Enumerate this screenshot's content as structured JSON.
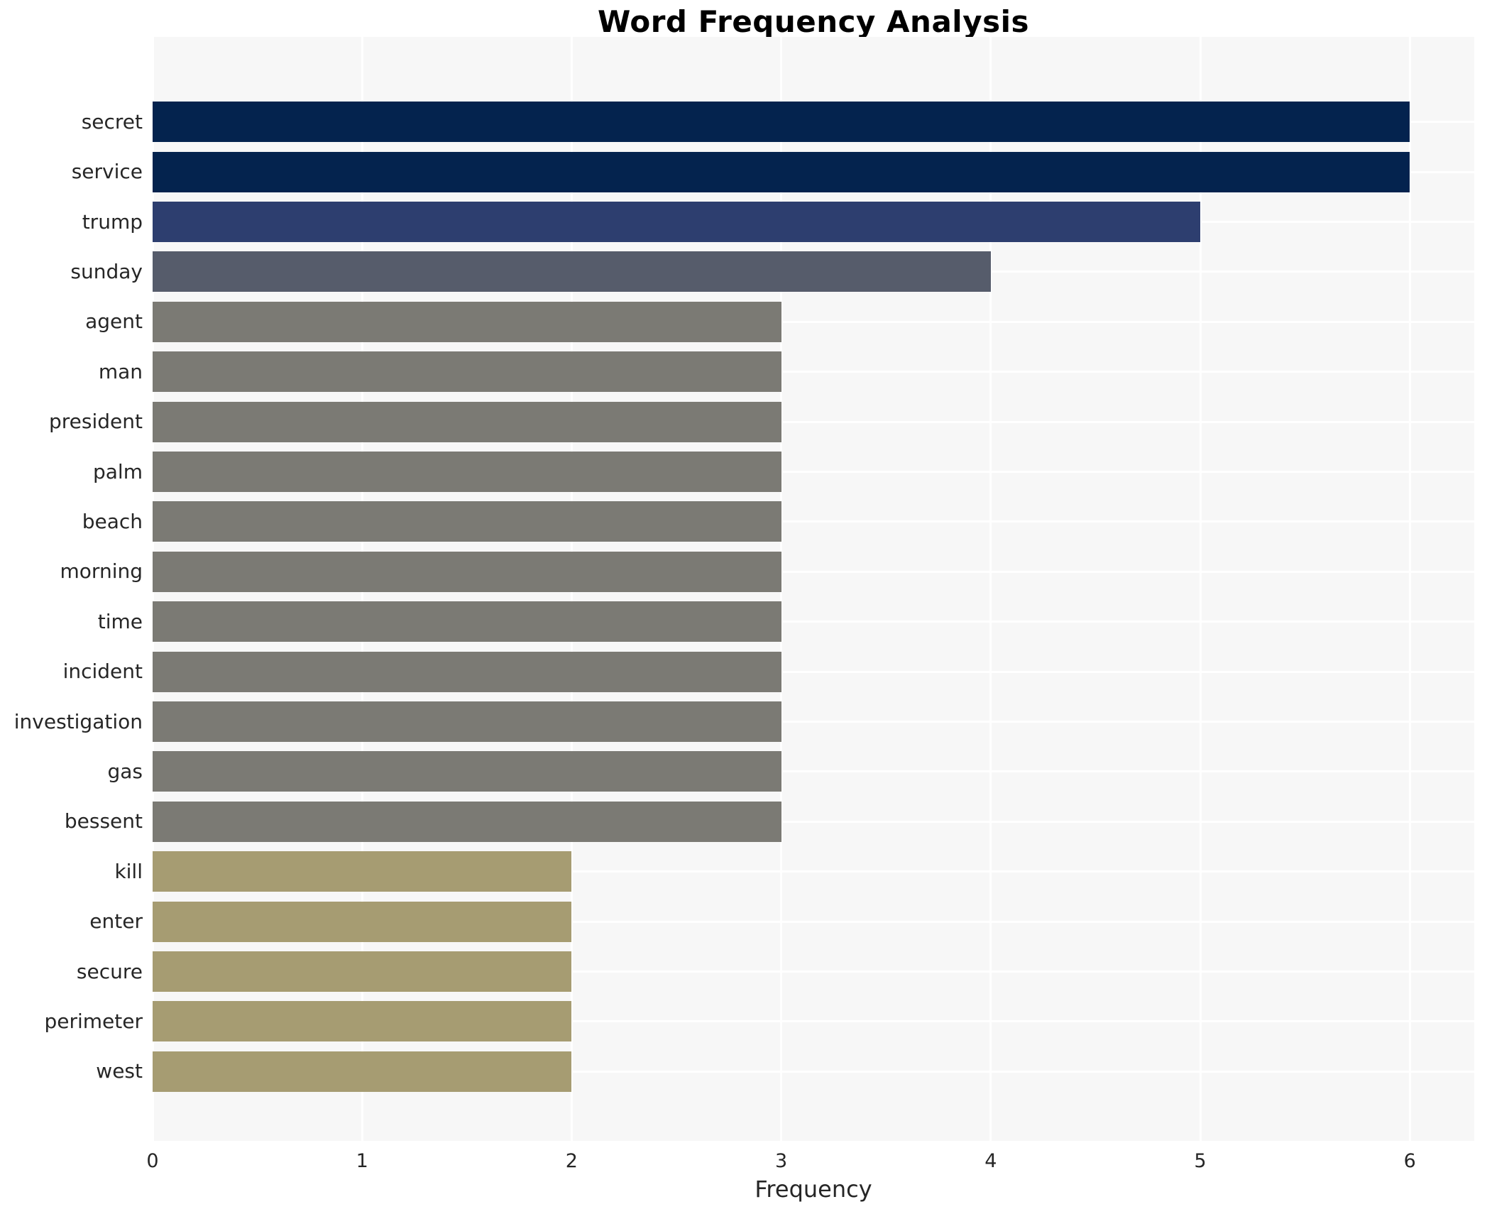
{
  "chart_data": {
    "type": "bar",
    "orientation": "horizontal",
    "title": "Word Frequency Analysis",
    "xlabel": "Frequency",
    "ylabel": "",
    "categories": [
      "secret",
      "service",
      "trump",
      "sunday",
      "agent",
      "man",
      "president",
      "palm",
      "beach",
      "morning",
      "time",
      "incident",
      "investigation",
      "gas",
      "bessent",
      "kill",
      "enter",
      "secure",
      "perimeter",
      "west"
    ],
    "values": [
      6,
      6,
      5,
      4,
      3,
      3,
      3,
      3,
      3,
      3,
      3,
      3,
      3,
      3,
      3,
      2,
      2,
      2,
      2,
      2
    ],
    "bar_colors": [
      "#04234e",
      "#04234e",
      "#2d3e6f",
      "#565c6b",
      "#7b7a74",
      "#7b7a74",
      "#7b7a74",
      "#7b7a74",
      "#7b7a74",
      "#7b7a74",
      "#7b7a74",
      "#7b7a74",
      "#7b7a74",
      "#7b7a74",
      "#7b7a74",
      "#a69c72",
      "#a69c72",
      "#a69c72",
      "#a69c72",
      "#a69c72"
    ],
    "xticks": [
      0,
      1,
      2,
      3,
      4,
      5,
      6
    ],
    "xlim": [
      0,
      6.31
    ],
    "grid": true,
    "legend_position": "none",
    "plot_background": "#f7f7f7",
    "grid_color": "#ffffff",
    "tick_text_color": "#262626",
    "title_color": "#000000"
  }
}
